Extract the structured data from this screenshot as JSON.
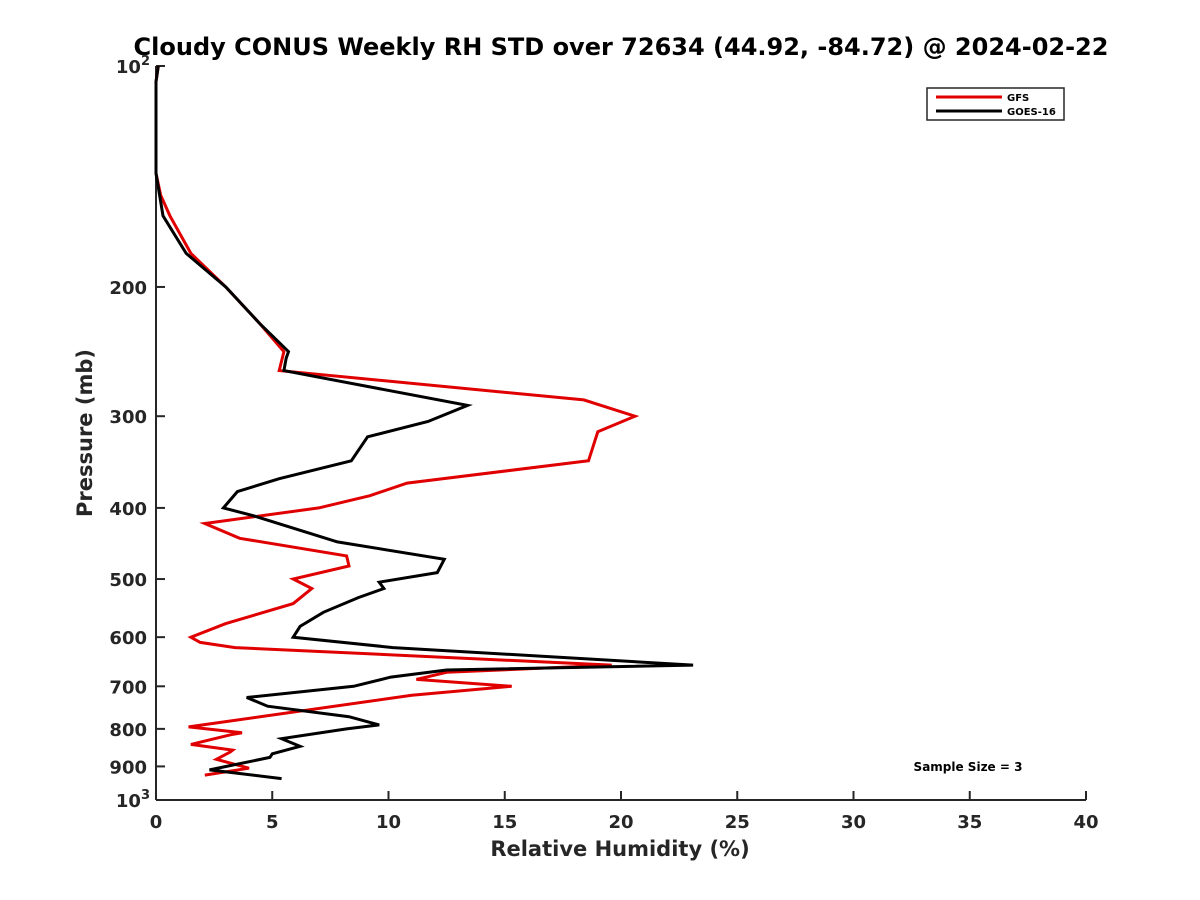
{
  "chart_data": {
    "type": "line",
    "title": "Cloudy CONUS Weekly RH STD over 72634 (44.92, -84.72) @ 2024-02-22",
    "xlabel": "Relative Humidity (%)",
    "ylabel": "Pressure (mb)",
    "xlim": [
      0,
      40
    ],
    "ylim": [
      100,
      1000
    ],
    "y_scale": "log",
    "y_reversed": true,
    "x_ticks": [
      "0",
      "5",
      "10",
      "15",
      "20",
      "25",
      "30",
      "35",
      "40"
    ],
    "y_ticks": [
      {
        "value": 100,
        "base": "10",
        "exp": "2"
      },
      {
        "value": 200,
        "label": "200"
      },
      {
        "value": 300,
        "label": "300"
      },
      {
        "value": 400,
        "label": "400"
      },
      {
        "value": 500,
        "label": "500"
      },
      {
        "value": 600,
        "label": "600"
      },
      {
        "value": 700,
        "label": "700"
      },
      {
        "value": 800,
        "label": "800"
      },
      {
        "value": 900,
        "label": "900"
      },
      {
        "value": 1000,
        "base": "10",
        "exp": "3"
      }
    ],
    "legend_position": "top-right",
    "annotation": "Sample Size = 3",
    "series": [
      {
        "name": "GFS",
        "color": "#e00000",
        "x": [
          0.1,
          0.0,
          0.0,
          0.0,
          0.2,
          0.6,
          1.5,
          3.0,
          4.5,
          5.5,
          5.3,
          18.4,
          20.6,
          19.0,
          18.6,
          10.8,
          9.2,
          7.0,
          2.1,
          3.6,
          8.2,
          8.3,
          5.9,
          6.7,
          5.9,
          3.0,
          1.5,
          1.9,
          3.4,
          19.6,
          12.5,
          11.2,
          15.3,
          11.0,
          1.4,
          3.7,
          3.2,
          1.5,
          3.3,
          3.2,
          2.6,
          4.0,
          2.1
        ],
        "y": [
          100,
          105,
          120,
          140,
          150,
          160,
          180,
          200,
          225,
          245,
          260,
          285,
          300,
          315,
          345,
          370,
          385,
          400,
          420,
          440,
          465,
          480,
          500,
          515,
          540,
          575,
          600,
          610,
          620,
          655,
          670,
          685,
          700,
          720,
          795,
          810,
          815,
          840,
          855,
          860,
          880,
          905,
          925
        ]
      },
      {
        "name": "GOES-16",
        "color": "#000000",
        "x": [
          0.1,
          0.0,
          0.0,
          0.0,
          0.3,
          1.3,
          3.0,
          4.5,
          5.7,
          5.6,
          5.5,
          13.4,
          11.7,
          9.1,
          8.4,
          5.3,
          3.5,
          2.9,
          4.2,
          7.8,
          12.4,
          12.1,
          9.6,
          9.8,
          8.7,
          7.2,
          6.2,
          5.9,
          10.2,
          23.1,
          12.5,
          10.1,
          8.5,
          3.9,
          4.8,
          8.3,
          9.6,
          8.2,
          5.4,
          6.2,
          5.0,
          4.9,
          2.3,
          5.4
        ],
        "y": [
          100,
          105,
          120,
          140,
          160,
          180,
          200,
          225,
          245,
          250,
          260,
          290,
          305,
          320,
          345,
          365,
          380,
          400,
          410,
          445,
          470,
          490,
          505,
          515,
          530,
          555,
          580,
          600,
          620,
          655,
          665,
          680,
          700,
          725,
          745,
          770,
          790,
          800,
          825,
          845,
          865,
          875,
          910,
          935
        ]
      }
    ]
  }
}
